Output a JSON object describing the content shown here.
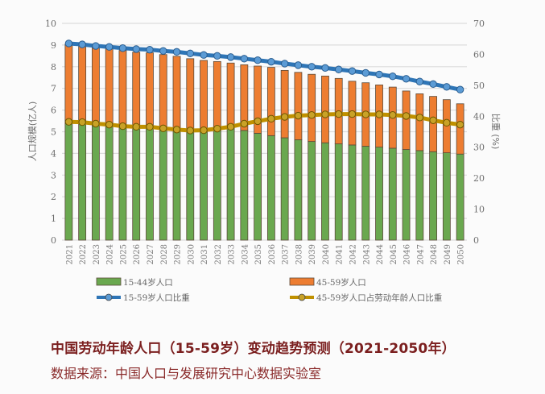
{
  "caption": {
    "title": "中国劳动年龄人口（15-59岁）变动趋势预测（2021-2050年）",
    "source": "数据来源：中国人口与发展研究中心数据实验室"
  },
  "colors": {
    "green": "#6aa84f",
    "orange": "#ed7d31",
    "blue": "#2e75b6",
    "blue_marker": "#5b9bd5",
    "gold": "#bf9000",
    "gold_marker": "#c9a227",
    "bar_edge": "#5a4a3a",
    "grid": "#dcdcdc",
    "caption": "#7b1f1f"
  },
  "chart_data": {
    "type": "bar",
    "stacked": true,
    "title": "中国劳动年龄人口（15-59岁）变动趋势预测（2021-2050年）",
    "xlabel": "",
    "ylabel": "人口规模(亿人)",
    "y2label": "比重 (%)",
    "ylim": [
      0,
      10
    ],
    "y2lim": [
      0,
      70
    ],
    "yticks": [
      0,
      1,
      2,
      3,
      4,
      5,
      6,
      7,
      8,
      9,
      10
    ],
    "y2ticks": [
      0,
      10,
      20,
      30,
      40,
      50,
      60,
      70
    ],
    "grid": true,
    "legend_position": "bottom",
    "categories": [
      "2021",
      "2022",
      "2023",
      "2024",
      "2025",
      "2026",
      "2027",
      "2028",
      "2029",
      "2030",
      "2031",
      "2032",
      "2033",
      "2034",
      "2035",
      "2036",
      "2037",
      "2038",
      "2039",
      "2040",
      "2041",
      "2042",
      "2043",
      "2044",
      "2045",
      "2046",
      "2047",
      "2048",
      "2049",
      "2050"
    ],
    "series": [
      {
        "name": "15-44岁人口",
        "type": "bar",
        "axis": "left",
        "color_key": "green",
        "values": [
          5.38,
          5.36,
          5.3,
          5.28,
          5.22,
          5.22,
          5.21,
          5.22,
          5.17,
          5.12,
          5.14,
          5.2,
          5.24,
          5.06,
          4.93,
          4.82,
          4.72,
          4.63,
          4.55,
          4.49,
          4.44,
          4.39,
          4.33,
          4.29,
          4.24,
          4.18,
          4.13,
          4.08,
          4.03,
          3.97
        ]
      },
      {
        "name": "45-59岁人口",
        "type": "bar",
        "axis": "left",
        "color_key": "orange",
        "values": [
          3.66,
          3.62,
          3.6,
          3.56,
          3.53,
          3.45,
          3.43,
          3.34,
          3.31,
          3.25,
          3.15,
          3.04,
          2.93,
          3.03,
          3.1,
          3.15,
          3.11,
          3.11,
          3.1,
          3.08,
          3.02,
          2.94,
          2.93,
          2.87,
          2.82,
          2.7,
          2.62,
          2.55,
          2.45,
          2.32
        ]
      },
      {
        "name": "15-59岁人口比重",
        "type": "line",
        "axis": "right",
        "color_key": "blue",
        "values": [
          63.5,
          63.2,
          62.7,
          62.4,
          62.0,
          61.7,
          61.5,
          61.1,
          60.8,
          60.3,
          59.8,
          59.5,
          59.1,
          58.6,
          58.1,
          57.6,
          57.0,
          56.5,
          56.0,
          55.6,
          55.1,
          54.6,
          54.0,
          53.5,
          52.9,
          52.1,
          51.2,
          50.4,
          49.5,
          48.6
        ]
      },
      {
        "name": "45-59岁人口占劳动年龄人口比重",
        "type": "line",
        "axis": "right",
        "color_key": "gold",
        "values": [
          38.2,
          38.1,
          37.6,
          37.3,
          36.8,
          36.6,
          36.6,
          36.1,
          35.7,
          35.4,
          35.5,
          36.0,
          36.6,
          37.6,
          38.4,
          39.2,
          39.8,
          40.2,
          40.4,
          40.6,
          40.7,
          40.7,
          40.6,
          40.6,
          40.4,
          40.1,
          39.6,
          38.7,
          37.9,
          37.3
        ]
      }
    ]
  },
  "legend": [
    {
      "label": "15-44岁人口",
      "kind": "bar",
      "color_key": "green"
    },
    {
      "label": "45-59岁人口",
      "kind": "bar",
      "color_key": "orange"
    },
    {
      "label": "15-59岁人口比重",
      "kind": "line",
      "color_key": "blue"
    },
    {
      "label": "45-59岁人口占劳动年龄人口比重",
      "kind": "line",
      "color_key": "gold"
    }
  ]
}
